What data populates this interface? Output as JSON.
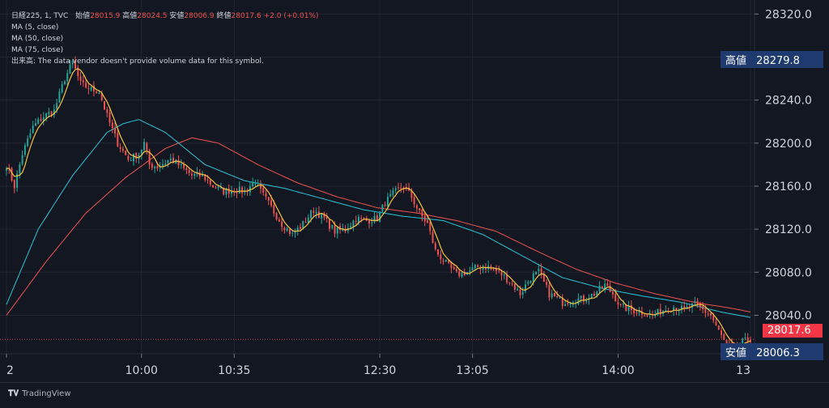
{
  "legend": {
    "symbol": "日経225, 1, TVC",
    "open_label": "始値",
    "open": "28015.9",
    "high_label": "高値",
    "high": "28024.5",
    "low_label": "安値",
    "low": "28006.9",
    "close_label": "終値",
    "close": "28017.6",
    "change": "+2.0 (+0.01%)",
    "ma5": "MA (5, close)",
    "ma50": "MA (50, close)",
    "ma75": "MA (75, close)",
    "volume_note": "出来高: The data vendor doesn't provide volume data for this symbol."
  },
  "tags": {
    "high_label": "高値",
    "high_value": "28279.8",
    "last_value": "28017.6",
    "low_label": "安値",
    "low_value": "28006.3"
  },
  "brand": "TradingView",
  "colors": {
    "background": "#131722",
    "up": "#26a69a",
    "down": "#ef5350",
    "ma5": "#f5c342",
    "ma50": "#26c6da",
    "ma75": "#ef5350",
    "tag_blue": "#1e3a6e",
    "tag_red": "#f23645"
  },
  "chart_data": {
    "type": "line",
    "title": "",
    "y_ticks": [
      28040,
      28080,
      28120,
      28160,
      28200,
      28240,
      28280,
      28320
    ],
    "y_tick_labels": [
      "28040.0",
      "28080.0",
      "28120.0",
      "28160.0",
      "28200.0",
      "28240.0",
      "28280.0",
      "28320.0"
    ],
    "ylim": [
      28005,
      28327
    ],
    "x_ticks": [
      {
        "label": "2",
        "i": 0
      },
      {
        "label": "10:00",
        "i": 51
      },
      {
        "label": "10:35",
        "i": 86
      },
      {
        "label": "12:30",
        "i": 141
      },
      {
        "label": "13:05",
        "i": 176
      },
      {
        "label": "14:00",
        "i": 231
      },
      {
        "label": "13",
        "i": 281
      }
    ],
    "grid": true,
    "last_price": 28017.6,
    "high_price": 28279.8,
    "low_price": 28006.3,
    "series": [
      {
        "key": "ma5",
        "name": "MA (5, close)"
      },
      {
        "key": "ma50",
        "name": "MA (50, close)"
      },
      {
        "key": "ma75",
        "name": "MA (75, close)"
      }
    ],
    "anchors_price": [
      [
        0,
        28180
      ],
      [
        3,
        28160
      ],
      [
        6,
        28190
      ],
      [
        10,
        28215
      ],
      [
        14,
        28225
      ],
      [
        18,
        28230
      ],
      [
        22,
        28260
      ],
      [
        25,
        28275
      ],
      [
        28,
        28255
      ],
      [
        32,
        28250
      ],
      [
        35,
        28248
      ],
      [
        38,
        28225
      ],
      [
        42,
        28200
      ],
      [
        46,
        28185
      ],
      [
        50,
        28190
      ],
      [
        52,
        28200
      ],
      [
        54,
        28180
      ],
      [
        57,
        28178
      ],
      [
        62,
        28185
      ],
      [
        66,
        28178
      ],
      [
        70,
        28170
      ],
      [
        74,
        28170
      ],
      [
        78,
        28160
      ],
      [
        82,
        28155
      ],
      [
        86,
        28157
      ],
      [
        90,
        28155
      ],
      [
        94,
        28165
      ],
      [
        96,
        28155
      ],
      [
        100,
        28140
      ],
      [
        104,
        28125
      ],
      [
        108,
        28115
      ],
      [
        112,
        28125
      ],
      [
        116,
        28138
      ],
      [
        120,
        28130
      ],
      [
        124,
        28118
      ],
      [
        128,
        28120
      ],
      [
        132,
        28130
      ],
      [
        136,
        28128
      ],
      [
        140,
        28130
      ],
      [
        143,
        28145
      ],
      [
        147,
        28155
      ],
      [
        150,
        28160
      ],
      [
        153,
        28150
      ],
      [
        156,
        28135
      ],
      [
        159,
        28125
      ],
      [
        162,
        28100
      ],
      [
        166,
        28088
      ],
      [
        170,
        28078
      ],
      [
        174,
        28080
      ],
      [
        178,
        28085
      ],
      [
        182,
        28085
      ],
      [
        186,
        28080
      ],
      [
        190,
        28072
      ],
      [
        194,
        28060
      ],
      [
        198,
        28075
      ],
      [
        201,
        28080
      ],
      [
        205,
        28060
      ],
      [
        210,
        28052
      ],
      [
        214,
        28055
      ],
      [
        218,
        28055
      ],
      [
        222,
        28060
      ],
      [
        226,
        28068
      ],
      [
        229,
        28060
      ],
      [
        232,
        28048
      ],
      [
        236,
        28045
      ],
      [
        240,
        28043
      ],
      [
        244,
        28040
      ],
      [
        248,
        28045
      ],
      [
        252,
        28048
      ],
      [
        256,
        28045
      ],
      [
        260,
        28050
      ],
      [
        263,
        28045
      ],
      [
        266,
        28040
      ],
      [
        269,
        28025
      ],
      [
        272,
        28012
      ],
      [
        275,
        28008
      ],
      [
        278,
        28015
      ],
      [
        281,
        28018
      ]
    ],
    "ma50_pts": [
      [
        0,
        28050
      ],
      [
        12,
        28120
      ],
      [
        25,
        28170
      ],
      [
        38,
        28210
      ],
      [
        44,
        28218
      ],
      [
        50,
        28222
      ],
      [
        60,
        28210
      ],
      [
        75,
        28180
      ],
      [
        90,
        28165
      ],
      [
        105,
        28158
      ],
      [
        120,
        28148
      ],
      [
        135,
        28138
      ],
      [
        150,
        28132
      ],
      [
        165,
        28128
      ],
      [
        180,
        28115
      ],
      [
        195,
        28095
      ],
      [
        210,
        28075
      ],
      [
        225,
        28065
      ],
      [
        240,
        28058
      ],
      [
        255,
        28052
      ],
      [
        270,
        28043
      ],
      [
        281,
        28038
      ]
    ],
    "ma75_pts": [
      [
        0,
        28040
      ],
      [
        15,
        28090
      ],
      [
        30,
        28135
      ],
      [
        45,
        28168
      ],
      [
        60,
        28195
      ],
      [
        70,
        28205
      ],
      [
        80,
        28200
      ],
      [
        95,
        28180
      ],
      [
        110,
        28163
      ],
      [
        125,
        28150
      ],
      [
        140,
        28140
      ],
      [
        155,
        28135
      ],
      [
        170,
        28128
      ],
      [
        185,
        28118
      ],
      [
        200,
        28100
      ],
      [
        215,
        28083
      ],
      [
        230,
        28070
      ],
      [
        245,
        28060
      ],
      [
        260,
        28052
      ],
      [
        275,
        28046
      ],
      [
        281,
        28043
      ]
    ]
  }
}
